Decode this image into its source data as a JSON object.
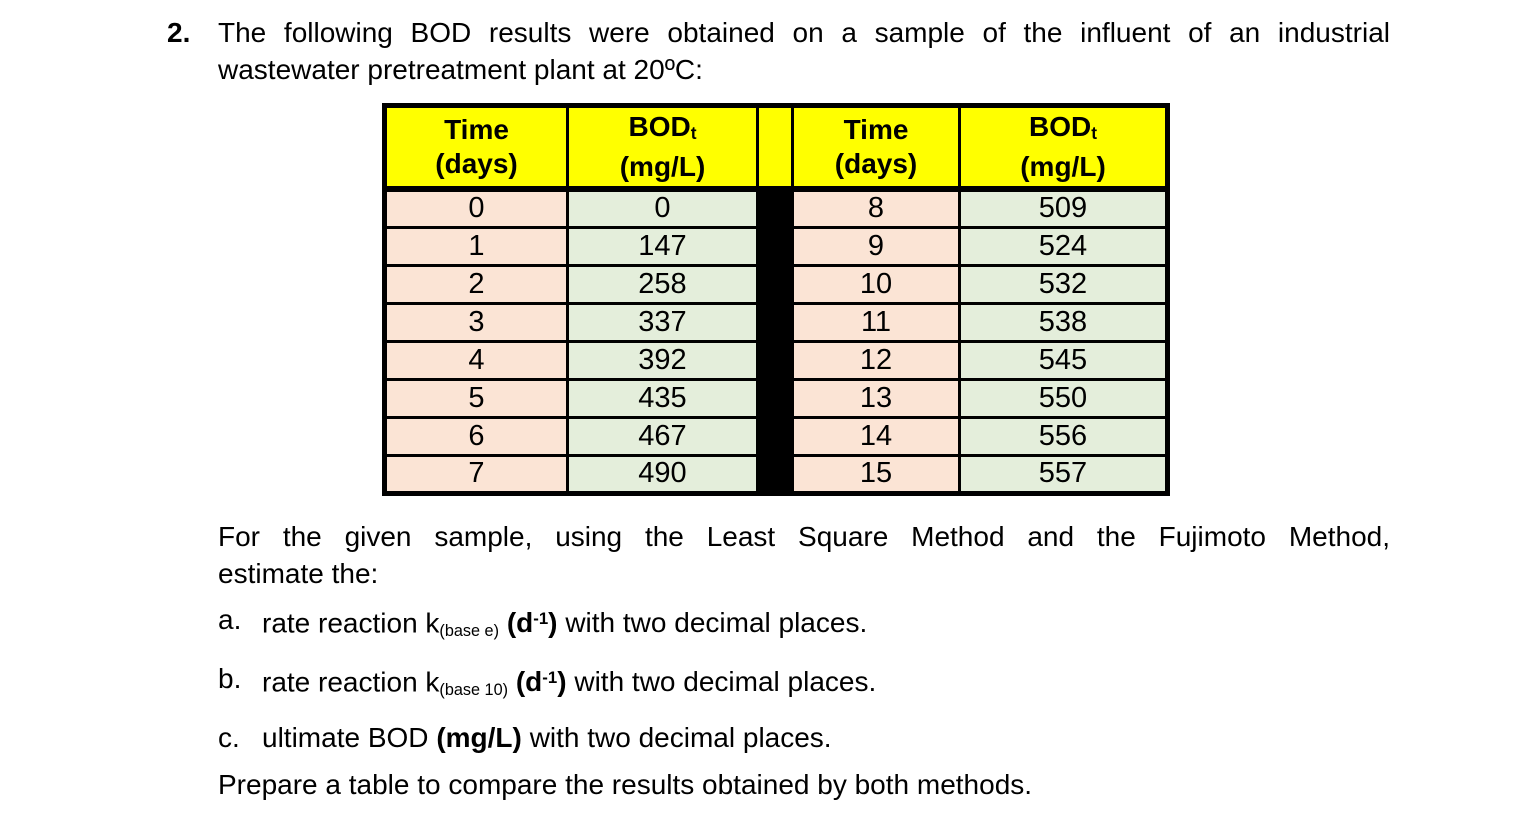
{
  "problem": {
    "number": "2.",
    "intro_lines": [
      "The following BOD results were obtained on a sample of the influent of an industrial",
      "wastewater pretreatment plant at 20ºC:"
    ]
  },
  "table": {
    "header": {
      "time_label": "Time",
      "time_unit": "(days)",
      "bod_label": "BOD",
      "bod_subscript": "t",
      "bod_unit": "(mg/L)"
    },
    "rows": [
      {
        "time_left": "0",
        "bod_left": "0",
        "time_right": "8",
        "bod_right": "509"
      },
      {
        "time_left": "1",
        "bod_left": "147",
        "time_right": "9",
        "bod_right": "524"
      },
      {
        "time_left": "2",
        "bod_left": "258",
        "time_right": "10",
        "bod_right": "532"
      },
      {
        "time_left": "3",
        "bod_left": "337",
        "time_right": "11",
        "bod_right": "538"
      },
      {
        "time_left": "4",
        "bod_left": "392",
        "time_right": "12",
        "bod_right": "545"
      },
      {
        "time_left": "5",
        "bod_left": "435",
        "time_right": "13",
        "bod_right": "550"
      },
      {
        "time_left": "6",
        "bod_left": "467",
        "time_right": "14",
        "bod_right": "556"
      },
      {
        "time_left": "7",
        "bod_left": "490",
        "time_right": "15",
        "bod_right": "557"
      }
    ]
  },
  "instruction_lines": [
    "For the given sample, using the Least Square Method and the Fujimoto Method,",
    "estimate the:"
  ],
  "tasks": [
    {
      "marker": "a.",
      "text_pre": "rate reaction k",
      "k_subscript": "(base e)",
      "unit_open": "(d",
      "unit_sup": "-1",
      "unit_close": ")",
      "text_post": "with two decimal places."
    },
    {
      "marker": "b.",
      "text_pre": "rate reaction k",
      "k_subscript": "(base 10)",
      "unit_open": "(d",
      "unit_sup": "-1",
      "unit_close": ")",
      "text_post": "with two decimal places."
    },
    {
      "marker": "c.",
      "text_pre": "ultimate BOD",
      "bold_unit": "(mg/L)",
      "text_post": "with two decimal places."
    }
  ],
  "closing": "Prepare a table to compare the results obtained by both methods.",
  "colors": {
    "header_bg": "#ffff00",
    "time_cell_bg": "#fbe4d5",
    "bod_cell_bg": "#e4eedb",
    "divider": "#000000",
    "border": "#000000",
    "text": "#000000",
    "page_bg": "#ffffff"
  }
}
